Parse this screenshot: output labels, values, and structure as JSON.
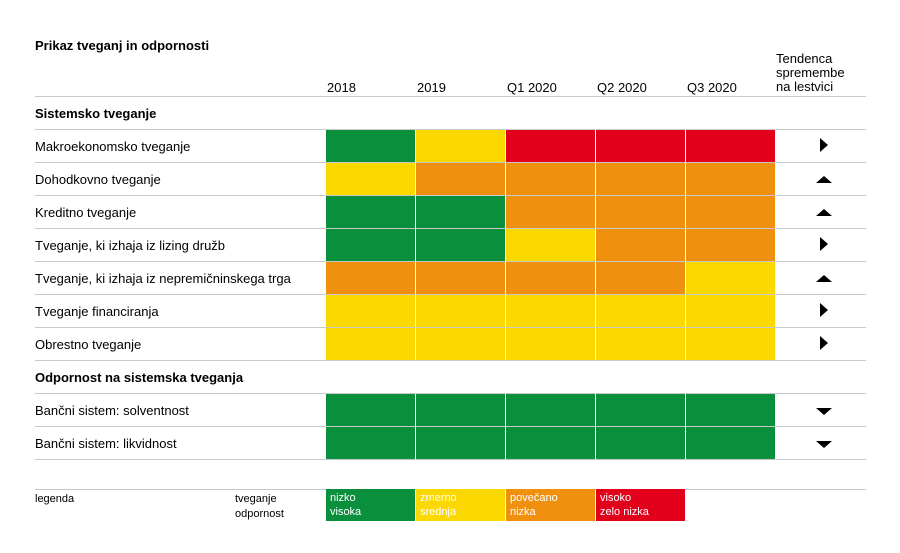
{
  "chart_data": {
    "type": "heatmap",
    "title": "Prikaz tveganj in odpornosti",
    "columns": [
      "2018",
      "2019",
      "Q1 2020",
      "Q2 2020",
      "Q3 2020"
    ],
    "trend_header": [
      "Tendenca",
      "spremembe",
      "na lestvici"
    ],
    "sections": [
      {
        "title": "Sistemsko tveganje",
        "rows": [
          {
            "label": "Makroekonomsko tveganje",
            "levels": [
              1,
              2,
              4,
              4,
              4
            ],
            "trend": "right"
          },
          {
            "label": "Dohodkovno tveganje",
            "levels": [
              2,
              3,
              3,
              3,
              3
            ],
            "trend": "up"
          },
          {
            "label": "Kreditno tveganje",
            "levels": [
              1,
              1,
              3,
              3,
              3
            ],
            "trend": "up"
          },
          {
            "label": "Tveganje, ki izhaja iz lizing družb",
            "levels": [
              1,
              1,
              2,
              3,
              3
            ],
            "trend": "right"
          },
          {
            "label": "Tveganje, ki izhaja iz nepremičninskega trga",
            "levels": [
              3,
              3,
              3,
              3,
              2
            ],
            "trend": "up"
          },
          {
            "label": "Tveganje financiranja",
            "levels": [
              2,
              2,
              2,
              2,
              2
            ],
            "trend": "right"
          },
          {
            "label": "Obrestno tveganje",
            "levels": [
              2,
              2,
              2,
              2,
              2
            ],
            "trend": "right"
          }
        ]
      },
      {
        "title": "Odpornost na sistemska tveganja",
        "rows": [
          {
            "label": "Bančni sistem: solventnost",
            "levels": [
              1,
              1,
              1,
              1,
              1
            ],
            "trend": "down"
          },
          {
            "label": "Bančni sistem: likvidnost",
            "levels": [
              1,
              1,
              1,
              1,
              1
            ],
            "trend": "down"
          }
        ]
      }
    ],
    "level_colors": {
      "1": "#0a8f3c",
      "2": "#fbd800",
      "3": "#f0900f",
      "4": "#e2001a"
    },
    "legend": {
      "label": "legenda",
      "row_labels": [
        "tveganje",
        "odpornost"
      ],
      "items": [
        {
          "level": 1,
          "risk": "nizko",
          "resilience": "visoka"
        },
        {
          "level": 2,
          "risk": "zmerno",
          "resilience": "srednja"
        },
        {
          "level": 3,
          "risk": "povečano",
          "resilience": "nizka"
        },
        {
          "level": 4,
          "risk": "visoko",
          "resilience": "zelo nizka"
        }
      ]
    }
  }
}
